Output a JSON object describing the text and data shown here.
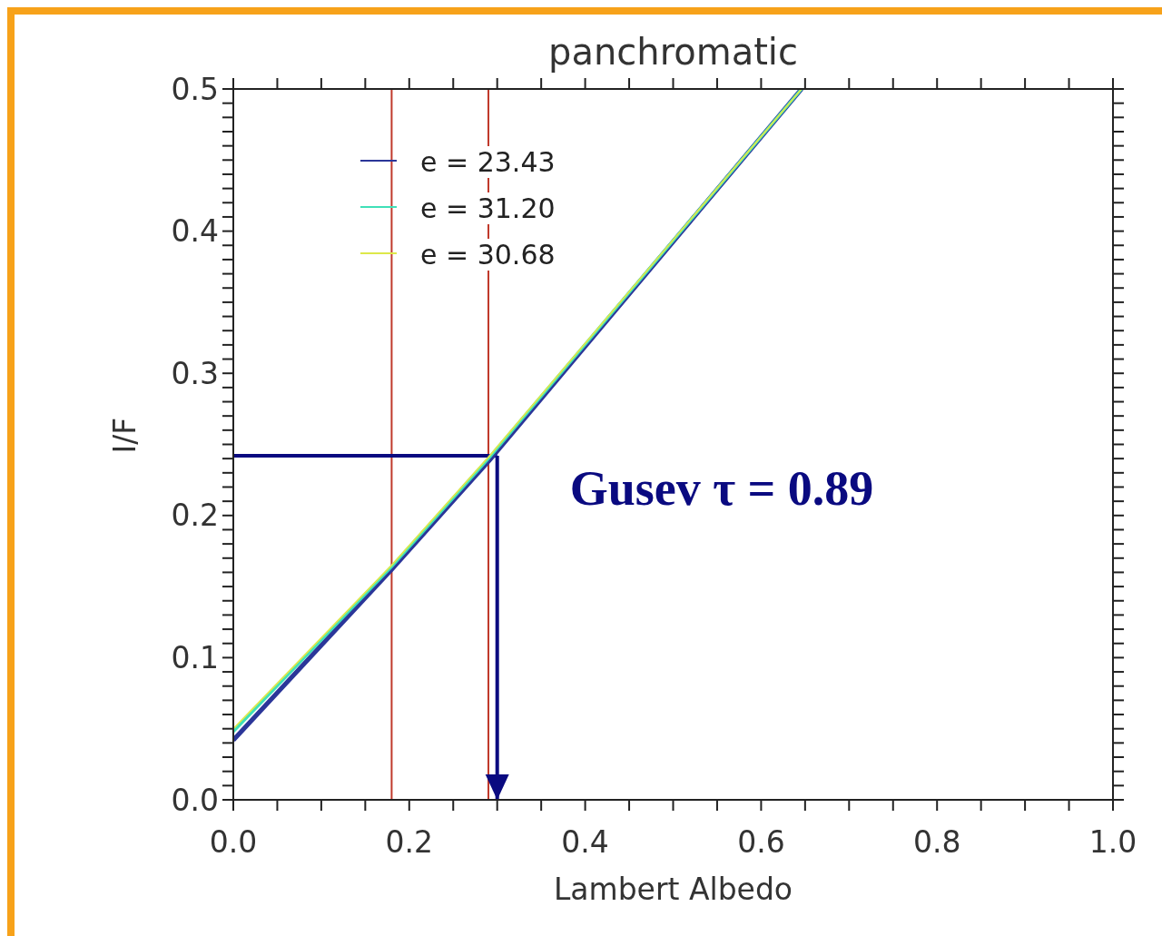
{
  "chart_data": {
    "type": "line",
    "title": "panchromatic",
    "xlabel": "Lambert Albedo",
    "ylabel": "I/F",
    "x": [
      0,
      0.18,
      0.29,
      0.646
    ],
    "series": [
      {
        "name": "e = 23.43",
        "color": "#2b3699",
        "values": [
          0.042,
          0.162,
          0.238,
          0.5
        ]
      },
      {
        "name": "e = 31.20",
        "color": "#3fe0b8",
        "values": [
          0.048,
          0.164,
          0.24,
          0.5
        ]
      },
      {
        "name": "e = 30.68",
        "color": "#dde84a",
        "values": [
          0.05,
          0.165,
          0.241,
          0.5
        ]
      }
    ],
    "xlim": [
      0,
      1
    ],
    "ylim": [
      0,
      0.5
    ],
    "xticks": [
      {
        "value": 0,
        "label": "0.0"
      },
      {
        "value": 0.05,
        "label": null
      },
      {
        "value": 0.1,
        "label": null
      },
      {
        "value": 0.15,
        "label": null
      },
      0.2,
      {
        "value": 0.25,
        "label": null
      },
      {
        "value": 0.3,
        "label": null
      },
      {
        "value": 0.35,
        "label": null
      },
      0.4,
      {
        "value": 0.45,
        "label": null
      },
      {
        "value": 0.5,
        "label": null
      },
      {
        "value": 0.55,
        "label": null
      },
      0.6,
      {
        "value": 0.65,
        "label": null
      },
      {
        "value": 0.7,
        "label": null
      },
      {
        "value": 0.75,
        "label": null
      },
      0.8,
      {
        "value": 0.85,
        "label": null
      },
      {
        "value": 0.9,
        "label": null
      },
      {
        "value": 0.95,
        "label": null
      },
      {
        "value": 1,
        "label": "1.0"
      }
    ],
    "yticks": [
      {
        "value": 0,
        "label": "0.0"
      },
      {
        "value": 0.01,
        "label": null
      },
      {
        "value": 0.02,
        "label": null
      },
      {
        "value": 0.03,
        "label": null
      },
      {
        "value": 0.04,
        "label": null
      },
      {
        "value": 0.05,
        "label": null
      },
      {
        "value": 0.06,
        "label": null
      },
      {
        "value": 0.07,
        "label": null
      },
      {
        "value": 0.08,
        "label": null
      },
      {
        "value": 0.09,
        "label": null
      },
      0.1,
      {
        "value": 0.11,
        "label": null
      },
      {
        "value": 0.12,
        "label": null
      },
      {
        "value": 0.13,
        "label": null
      },
      {
        "value": 0.14,
        "label": null
      },
      {
        "value": 0.15,
        "label": null
      },
      {
        "value": 0.16,
        "label": null
      },
      {
        "value": 0.17,
        "label": null
      },
      {
        "value": 0.18,
        "label": null
      },
      {
        "value": 0.19,
        "label": null
      },
      0.2,
      {
        "value": 0.21,
        "label": null
      },
      {
        "value": 0.22,
        "label": null
      },
      {
        "value": 0.23,
        "label": null
      },
      {
        "value": 0.24,
        "label": null
      },
      {
        "value": 0.25,
        "label": null
      },
      {
        "value": 0.26,
        "label": null
      },
      {
        "value": 0.27,
        "label": null
      },
      {
        "value": 0.28,
        "label": null
      },
      {
        "value": 0.29,
        "label": null
      },
      0.3,
      {
        "value": 0.31,
        "label": null
      },
      {
        "value": 0.32,
        "label": null
      },
      {
        "value": 0.33,
        "label": null
      },
      {
        "value": 0.34,
        "label": null
      },
      {
        "value": 0.35,
        "label": null
      },
      {
        "value": 0.36,
        "label": null
      },
      {
        "value": 0.37,
        "label": null
      },
      {
        "value": 0.38,
        "label": null
      },
      {
        "value": 0.39,
        "label": null
      },
      0.4,
      {
        "value": 0.41,
        "label": null
      },
      {
        "value": 0.42,
        "label": null
      },
      {
        "value": 0.43,
        "label": null
      },
      {
        "value": 0.44,
        "label": null
      },
      {
        "value": 0.45,
        "label": null
      },
      {
        "value": 0.46,
        "label": null
      },
      {
        "value": 0.47,
        "label": null
      },
      {
        "value": 0.48,
        "label": null
      },
      {
        "value": 0.49,
        "label": null
      },
      0.5
    ],
    "ref_lines": [
      {
        "axis": "x",
        "value": 0.18,
        "color": "#c0392b"
      },
      {
        "axis": "x",
        "value": 0.29,
        "color": "#c0392b"
      },
      {
        "axis": "y",
        "value": 0.242,
        "color": "#0a0a80"
      },
      {
        "axis": "x",
        "value": 0.3,
        "color": "#0a0a80"
      }
    ],
    "annotations": [
      "Gusev τ = 0.89"
    ],
    "legend": "top left",
    "grid": false,
    "marker": "none",
    "line_style": "solid"
  }
}
